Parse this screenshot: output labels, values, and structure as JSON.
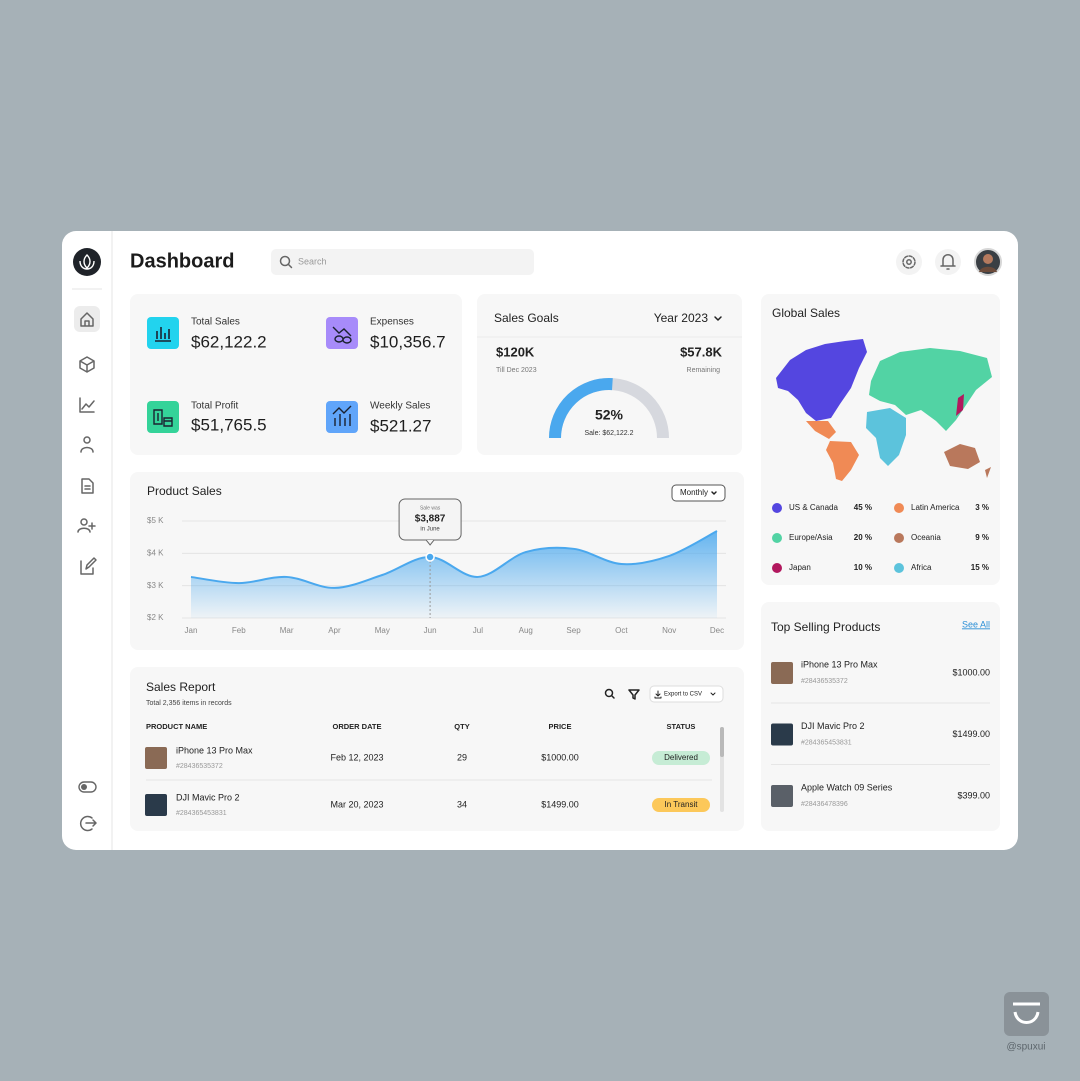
{
  "header": {
    "title": "Dashboard",
    "search_placeholder": "Search"
  },
  "stats": [
    {
      "label": "Total Sales",
      "value": "$62,122.2"
    },
    {
      "label": "Expenses",
      "value": "$10,356.7"
    },
    {
      "label": "Total Profit",
      "value": "$51,765.5"
    },
    {
      "label": "Weekly Sales",
      "value": "$521.27"
    }
  ],
  "sales_goals": {
    "title": "Sales Goals",
    "period": "Year 2023",
    "target": "$120K",
    "target_note": "Till Dec 2023",
    "remaining": "$57.8K",
    "remaining_note": "Remaining",
    "gauge": {
      "value": 52,
      "label": "52%"
    },
    "sale": "Sale: $62,122.2"
  },
  "global_sales": {
    "title": "Global Sales",
    "regions": [
      {
        "name": "US & Canada",
        "share": "45 %",
        "color": "#5446e0"
      },
      {
        "name": "Latin America",
        "share": "3 %",
        "color": "#f08a55"
      },
      {
        "name": "Europe/Asia",
        "share": "20 %",
        "color": "#52d3a4"
      },
      {
        "name": "Oceania",
        "share": "9 %",
        "color": "#b9785c"
      },
      {
        "name": "Japan",
        "share": "10 %",
        "color": "#b2185e"
      },
      {
        "name": "Africa",
        "share": "15 %",
        "color": "#5cc3dc"
      }
    ]
  },
  "chart_data": {
    "type": "area",
    "title": "Product Sales",
    "filter": "Monthly",
    "categories": [
      "Jan",
      "Feb",
      "Mar",
      "Apr",
      "May",
      "Jun",
      "Jul",
      "Aug",
      "Sep",
      "Oct",
      "Nov",
      "Dec"
    ],
    "values": [
      3270,
      3080,
      3270,
      2930,
      3330,
      3887,
      3270,
      4040,
      4140,
      3670,
      3920,
      4690
    ],
    "color": "#4aa8ee",
    "ylim": [
      2000,
      5000
    ],
    "yticks": [
      {
        "value": 2000,
        "label": "$2 K"
      },
      {
        "value": 3000,
        "label": "$3 K"
      },
      {
        "value": 4000,
        "label": "$4 K"
      },
      {
        "value": 5000,
        "label": "$5 K"
      }
    ],
    "grid": true,
    "tooltip": {
      "title": "Sale was",
      "value": "$3,887",
      "month": "in June"
    }
  },
  "sales_report": {
    "title": "Sales Report",
    "subtitle": "Total 2,356 items in records",
    "export": "Export to CSV",
    "columns": [
      "PRODUCT NAME",
      "ORDER DATE",
      "QTY",
      "PRICE",
      "STATUS"
    ],
    "rows": [
      {
        "name": "iPhone 13 Pro Max",
        "id": "#28436535372",
        "date": "Feb 12, 2023",
        "qty": 29,
        "price": "$1000.00",
        "status": "Delivered",
        "status_color": "#c6ecd5"
      },
      {
        "name": "DJI Mavic Pro 2",
        "id": "#284365453831",
        "date": "Mar 20, 2023",
        "qty": 34,
        "price": "$1499.00",
        "status": "In Transit",
        "status_color": "#fcc85a"
      }
    ]
  },
  "top_selling": {
    "title": "Top Selling Products",
    "see_all": "See All",
    "items": [
      {
        "name": "iPhone 13 Pro Max",
        "id": "#28436535372",
        "price": "$1000.00"
      },
      {
        "name": "DJI Mavic Pro 2",
        "id": "#284365453831",
        "price": "$1499.00"
      },
      {
        "name": "Apple Watch 09 Series",
        "id": "#28436478396",
        "price": "$399.00"
      }
    ]
  },
  "watermark": "@spuxui"
}
